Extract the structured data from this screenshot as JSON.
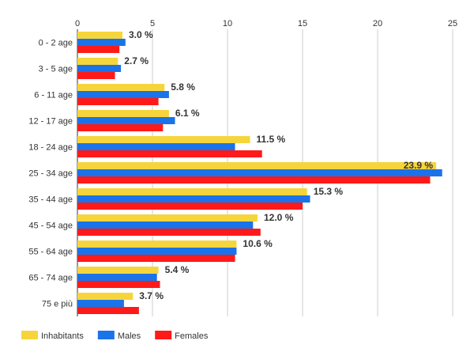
{
  "chart_data": {
    "type": "bar",
    "orientation": "horizontal",
    "categories": [
      "0 - 2 age",
      "3 - 5 age",
      "6 - 11 age",
      "12 - 17 age",
      "18 - 24 age",
      "25 - 34 age",
      "35 - 44 age",
      "45 - 54 age",
      "55 - 64 age",
      "65 - 74 age",
      "75 e più"
    ],
    "series": [
      {
        "name": "Inhabitants",
        "color": "#f6d53c",
        "values": [
          3.0,
          2.7,
          5.8,
          6.1,
          11.5,
          23.9,
          15.3,
          12.0,
          10.6,
          5.4,
          3.7
        ]
      },
      {
        "name": "Males",
        "color": "#1a73e8",
        "values": [
          3.2,
          2.9,
          6.1,
          6.5,
          10.5,
          24.3,
          15.5,
          11.7,
          10.6,
          5.3,
          3.1
        ]
      },
      {
        "name": "Females",
        "color": "#ff1a1a",
        "values": [
          2.8,
          2.5,
          5.4,
          5.7,
          12.3,
          23.5,
          15.0,
          12.2,
          10.5,
          5.5,
          4.1
        ]
      }
    ],
    "data_labels": [
      "3.0 %",
      "2.7 %",
      "5.8 %",
      "6.1 %",
      "11.5 %",
      "23.9 %",
      "15.3 %",
      "12.0 %",
      "10.6 %",
      "5.4 %",
      "3.7 %"
    ],
    "x_ticks": [
      "0",
      "5",
      "10",
      "15",
      "20",
      "25"
    ],
    "xlim": [
      0,
      25
    ],
    "title": "",
    "xlabel": "",
    "ylabel": "",
    "grid": true,
    "x_axis_position": "top",
    "legend_position": "bottom-left"
  }
}
